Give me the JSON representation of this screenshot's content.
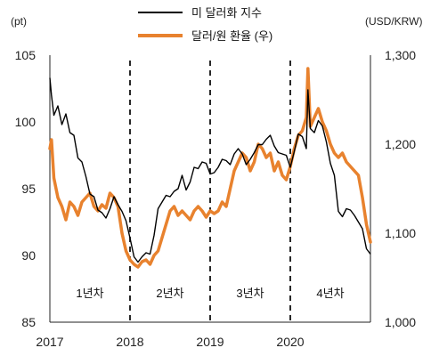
{
  "chart_data": {
    "type": "line",
    "left_axis": {
      "unit": "(pt)",
      "ylim": [
        85,
        105
      ],
      "ticks": [
        "85",
        "90",
        "95",
        "100",
        "105"
      ]
    },
    "right_axis": {
      "unit": "(USD/KRW)",
      "ylim": [
        1000,
        1300
      ],
      "ticks": [
        "1,000",
        "1,100",
        "1,200",
        "1,300"
      ]
    },
    "x_axis": {
      "xlim": [
        2017.0,
        2021.0
      ],
      "ticks": [
        "2017",
        "2018",
        "2019",
        "2020"
      ]
    },
    "legend": [
      "미 달러화 지수",
      "달러/원 환율 (우)"
    ],
    "colors": {
      "dollar_index": "#000000",
      "usd_krw": "#e8822e"
    },
    "dividers": [
      2018.0,
      2019.0,
      2020.0
    ],
    "phases": [
      "1년차",
      "2년차",
      "3년차",
      "4년차"
    ],
    "series": [
      {
        "name": "미 달러화 지수",
        "axis": "left",
        "x": [
          2017.0,
          2017.02,
          2017.05,
          2017.1,
          2017.15,
          2017.2,
          2017.25,
          2017.3,
          2017.35,
          2017.4,
          2017.45,
          2017.5,
          2017.55,
          2017.6,
          2017.65,
          2017.7,
          2017.75,
          2017.8,
          2017.85,
          2017.9,
          2017.95,
          2018.0,
          2018.05,
          2018.1,
          2018.15,
          2018.2,
          2018.25,
          2018.3,
          2018.35,
          2018.4,
          2018.45,
          2018.5,
          2018.55,
          2018.6,
          2018.65,
          2018.7,
          2018.75,
          2018.8,
          2018.85,
          2018.9,
          2018.95,
          2019.0,
          2019.05,
          2019.1,
          2019.15,
          2019.2,
          2019.25,
          2019.3,
          2019.35,
          2019.4,
          2019.45,
          2019.5,
          2019.55,
          2019.6,
          2019.65,
          2019.7,
          2019.75,
          2019.8,
          2019.85,
          2019.9,
          2019.95,
          2020.0,
          2020.05,
          2020.1,
          2020.15,
          2020.2,
          2020.22,
          2020.25,
          2020.3,
          2020.35,
          2020.4,
          2020.45,
          2020.5,
          2020.55,
          2020.6,
          2020.65,
          2020.7,
          2020.75,
          2020.8,
          2020.85,
          2020.9,
          2020.95,
          2021.0
        ],
        "y": [
          103.3,
          102.0,
          100.5,
          101.2,
          99.8,
          100.6,
          99.2,
          99.0,
          97.3,
          97.0,
          95.9,
          94.6,
          94.4,
          93.4,
          93.2,
          92.8,
          93.5,
          94.4,
          93.8,
          93.3,
          92.6,
          91.3,
          89.9,
          89.5,
          89.9,
          90.2,
          90.1,
          91.5,
          93.5,
          94.0,
          94.5,
          94.4,
          94.8,
          95.0,
          96.0,
          94.9,
          95.5,
          96.6,
          96.5,
          97.0,
          96.9,
          96.1,
          96.2,
          96.6,
          97.2,
          97.1,
          96.8,
          97.6,
          98.0,
          97.6,
          96.8,
          97.2,
          97.7,
          98.3,
          98.3,
          98.7,
          99.0,
          98.2,
          97.7,
          97.6,
          97.5,
          96.6,
          97.8,
          99.1,
          98.9,
          98.0,
          102.4,
          99.5,
          99.2,
          100.1,
          99.7,
          98.5,
          96.9,
          96.0,
          93.3,
          92.9,
          93.5,
          93.4,
          93.0,
          92.5,
          92.0,
          90.5,
          90.1
        ]
      },
      {
        "name": "달러/원 환율 (우)",
        "axis": "right",
        "x": [
          2017.0,
          2017.02,
          2017.05,
          2017.1,
          2017.15,
          2017.2,
          2017.25,
          2017.3,
          2017.35,
          2017.4,
          2017.45,
          2017.5,
          2017.55,
          2017.6,
          2017.65,
          2017.7,
          2017.75,
          2017.8,
          2017.85,
          2017.9,
          2017.95,
          2018.0,
          2018.05,
          2018.1,
          2018.15,
          2018.2,
          2018.25,
          2018.3,
          2018.35,
          2018.4,
          2018.45,
          2018.5,
          2018.55,
          2018.6,
          2018.65,
          2018.7,
          2018.75,
          2018.8,
          2018.85,
          2018.9,
          2018.95,
          2019.0,
          2019.05,
          2019.1,
          2019.15,
          2019.2,
          2019.25,
          2019.3,
          2019.35,
          2019.4,
          2019.45,
          2019.5,
          2019.55,
          2019.6,
          2019.65,
          2019.7,
          2019.75,
          2019.8,
          2019.85,
          2019.9,
          2019.95,
          2020.0,
          2020.05,
          2020.1,
          2020.15,
          2020.2,
          2020.22,
          2020.25,
          2020.3,
          2020.35,
          2020.4,
          2020.45,
          2020.5,
          2020.55,
          2020.6,
          2020.65,
          2020.7,
          2020.75,
          2020.8,
          2020.85,
          2020.9,
          2020.95,
          2021.0
        ],
        "y": [
          1195,
          1205,
          1162,
          1140,
          1130,
          1115,
          1135,
          1130,
          1120,
          1135,
          1140,
          1145,
          1130,
          1125,
          1132,
          1128,
          1145,
          1140,
          1130,
          1100,
          1080,
          1070,
          1065,
          1062,
          1068,
          1070,
          1065,
          1075,
          1080,
          1095,
          1110,
          1125,
          1130,
          1120,
          1125,
          1120,
          1115,
          1125,
          1130,
          1125,
          1118,
          1125,
          1122,
          1125,
          1135,
          1130,
          1150,
          1170,
          1180,
          1190,
          1185,
          1170,
          1180,
          1200,
          1195,
          1185,
          1190,
          1170,
          1180,
          1165,
          1160,
          1175,
          1195,
          1210,
          1215,
          1230,
          1285,
          1220,
          1230,
          1240,
          1225,
          1215,
          1200,
          1190,
          1185,
          1190,
          1180,
          1175,
          1170,
          1165,
          1140,
          1110,
          1090
        ]
      }
    ]
  }
}
